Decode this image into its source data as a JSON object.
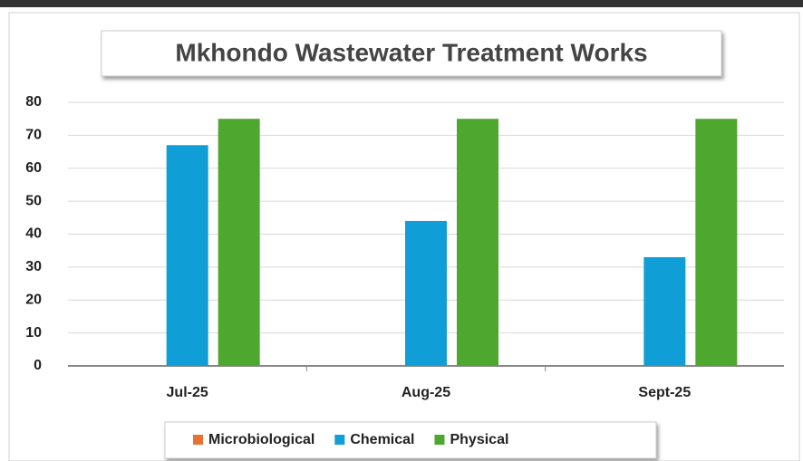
{
  "chart_data": {
    "type": "bar",
    "title": "Mkhondo Wastewater Treatment Works",
    "categories": [
      "Jul-25",
      "Aug-25",
      "Sept-25"
    ],
    "series": [
      {
        "name": "Microbiological",
        "color": "#e97132",
        "values": [
          0,
          0,
          0
        ]
      },
      {
        "name": "Chemical",
        "color": "#0f9ed5",
        "values": [
          67,
          44,
          33
        ]
      },
      {
        "name": "Physical",
        "color": "#4ea72e",
        "values": [
          75,
          75,
          75
        ]
      }
    ],
    "ylim": [
      0,
      80
    ],
    "yticks": [
      0,
      10,
      20,
      30,
      40,
      50,
      60,
      70,
      80
    ],
    "grid": true,
    "legend": "bottom"
  }
}
